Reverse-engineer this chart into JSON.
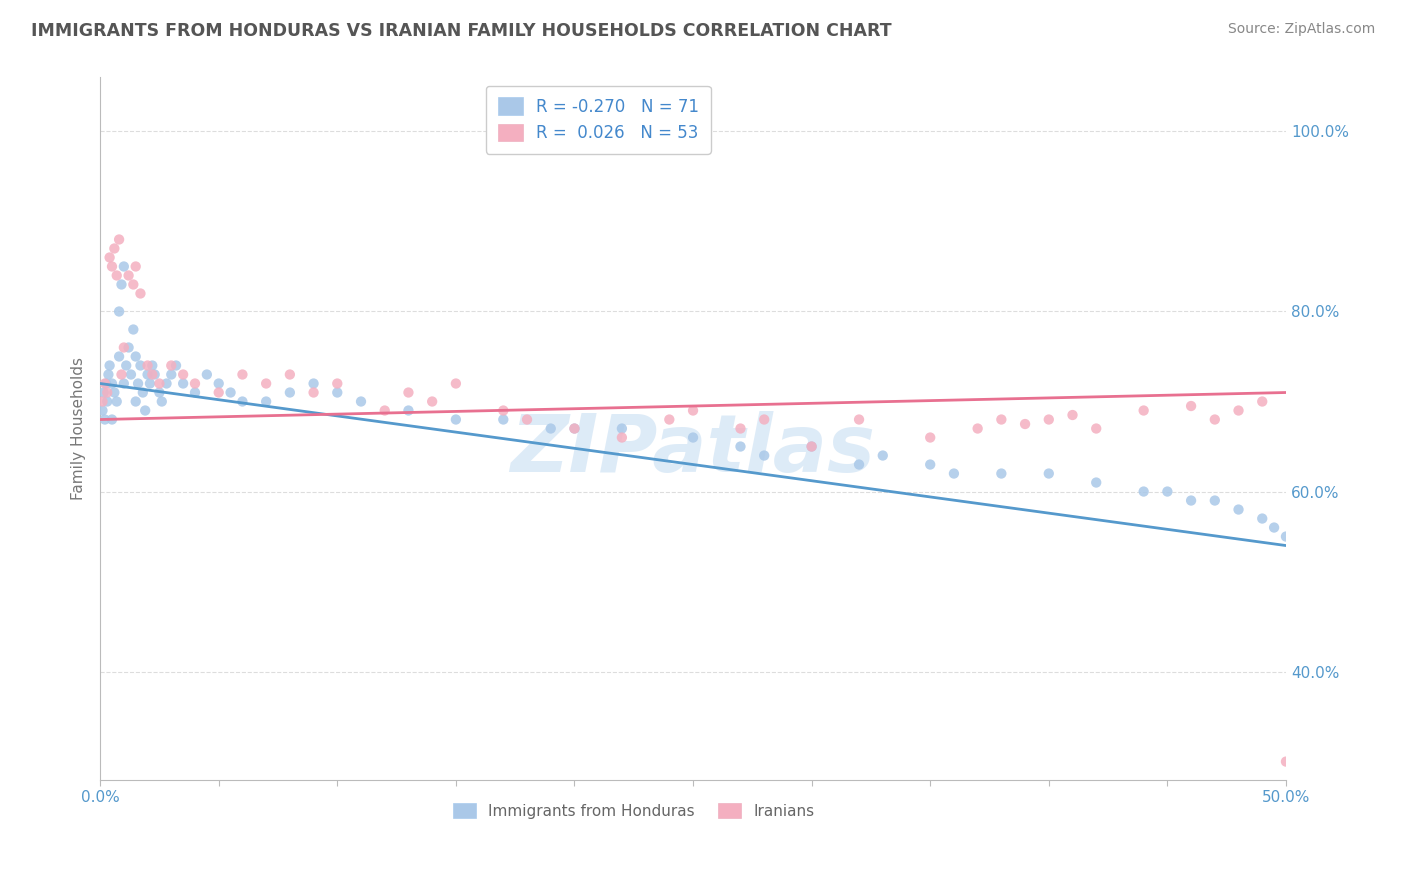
{
  "title": "IMMIGRANTS FROM HONDURAS VS IRANIAN FAMILY HOUSEHOLDS CORRELATION CHART",
  "source_text": "Source: ZipAtlas.com",
  "ylabel": "Family Households",
  "watermark": "ZIPatlas",
  "xlim": [
    0.0,
    50.0
  ],
  "ylim": [
    28.0,
    106.0
  ],
  "xticks": [
    0.0,
    5.0,
    10.0,
    15.0,
    20.0,
    25.0,
    30.0,
    35.0,
    40.0,
    45.0,
    50.0
  ],
  "yticks": [
    40.0,
    60.0,
    80.0,
    100.0
  ],
  "ytick_labels": [
    "40.0%",
    "60.0%",
    "80.0%",
    "100.0%"
  ],
  "blue_R": -0.27,
  "blue_N": 71,
  "pink_R": 0.026,
  "pink_N": 53,
  "blue_color": "#aac8e8",
  "pink_color": "#f4afc0",
  "blue_line_color": "#5599cc",
  "pink_line_color": "#e87090",
  "legend_text_color": "#4488cc",
  "title_color": "#555555",
  "axis_color": "#bbbbbb",
  "grid_color": "#dddddd",
  "blue_scatter_x": [
    0.1,
    0.15,
    0.2,
    0.25,
    0.3,
    0.35,
    0.4,
    0.5,
    0.5,
    0.6,
    0.7,
    0.8,
    0.8,
    0.9,
    1.0,
    1.0,
    1.1,
    1.2,
    1.3,
    1.4,
    1.5,
    1.5,
    1.6,
    1.7,
    1.8,
    1.9,
    2.0,
    2.1,
    2.2,
    2.3,
    2.5,
    2.6,
    2.8,
    3.0,
    3.2,
    3.5,
    4.0,
    4.5,
    5.0,
    5.5,
    6.0,
    7.0,
    8.0,
    9.0,
    10.0,
    11.0,
    13.0,
    15.0,
    17.0,
    19.0,
    20.0,
    22.0,
    25.0,
    27.0,
    30.0,
    33.0,
    35.0,
    38.0,
    40.0,
    42.0,
    44.0,
    45.0,
    46.0,
    47.0,
    48.0,
    49.0,
    49.5,
    50.0,
    28.0,
    32.0,
    36.0
  ],
  "blue_scatter_y": [
    69.0,
    71.0,
    68.0,
    72.0,
    70.0,
    73.0,
    74.0,
    72.0,
    68.0,
    71.0,
    70.0,
    80.0,
    75.0,
    83.0,
    85.0,
    72.0,
    74.0,
    76.0,
    73.0,
    78.0,
    75.0,
    70.0,
    72.0,
    74.0,
    71.0,
    69.0,
    73.0,
    72.0,
    74.0,
    73.0,
    71.0,
    70.0,
    72.0,
    73.0,
    74.0,
    72.0,
    71.0,
    73.0,
    72.0,
    71.0,
    70.0,
    70.0,
    71.0,
    72.0,
    71.0,
    70.0,
    69.0,
    68.0,
    68.0,
    67.0,
    67.0,
    67.0,
    66.0,
    65.0,
    65.0,
    64.0,
    63.0,
    62.0,
    62.0,
    61.0,
    60.0,
    60.0,
    59.0,
    59.0,
    58.0,
    57.0,
    56.0,
    55.0,
    64.0,
    63.0,
    62.0
  ],
  "pink_scatter_x": [
    0.1,
    0.2,
    0.3,
    0.4,
    0.5,
    0.6,
    0.7,
    0.8,
    0.9,
    1.0,
    1.2,
    1.4,
    1.5,
    1.7,
    2.0,
    2.2,
    2.5,
    3.0,
    3.5,
    4.0,
    5.0,
    6.0,
    7.0,
    8.0,
    9.0,
    10.0,
    12.0,
    13.0,
    14.0,
    15.0,
    17.0,
    18.0,
    20.0,
    22.0,
    24.0,
    25.0,
    27.0,
    28.0,
    30.0,
    32.0,
    35.0,
    37.0,
    38.0,
    39.0,
    40.0,
    41.0,
    42.0,
    44.0,
    46.0,
    47.0,
    48.0,
    49.0,
    50.0
  ],
  "pink_scatter_y": [
    70.0,
    72.0,
    71.0,
    86.0,
    85.0,
    87.0,
    84.0,
    88.0,
    73.0,
    76.0,
    84.0,
    83.0,
    85.0,
    82.0,
    74.0,
    73.0,
    72.0,
    74.0,
    73.0,
    72.0,
    71.0,
    73.0,
    72.0,
    73.0,
    71.0,
    72.0,
    69.0,
    71.0,
    70.0,
    72.0,
    69.0,
    68.0,
    67.0,
    66.0,
    68.0,
    69.0,
    67.0,
    68.0,
    65.0,
    68.0,
    66.0,
    67.0,
    68.0,
    67.5,
    68.0,
    68.5,
    67.0,
    69.0,
    69.5,
    68.0,
    69.0,
    70.0,
    30.0
  ],
  "blue_trend_x": [
    0.0,
    50.0
  ],
  "blue_trend_y": [
    72.0,
    54.0
  ],
  "pink_trend_x": [
    0.0,
    50.0
  ],
  "pink_trend_y": [
    68.0,
    71.0
  ],
  "bg_color": "#ffffff"
}
